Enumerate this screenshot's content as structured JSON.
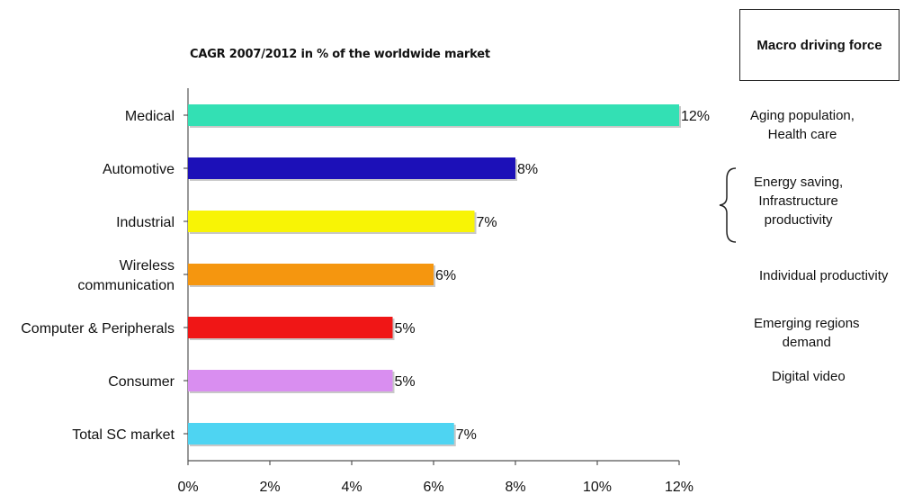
{
  "chart_data": {
    "type": "bar",
    "orientation": "horizontal",
    "title": "CAGR 2007/2012 in % of the worldwide market",
    "categories": [
      "Medical",
      "Automotive",
      "Industrial",
      "Wireless communication",
      "Computer & Peripherals",
      "Consumer",
      "Total SC market"
    ],
    "category_lines": [
      [
        "Medical"
      ],
      [
        "Automotive"
      ],
      [
        "Industrial"
      ],
      [
        "Wireless",
        "communication"
      ],
      [
        "Computer & Peripherals"
      ],
      [
        "Consumer"
      ],
      [
        "Total SC market"
      ]
    ],
    "values": [
      12,
      8,
      7,
      6,
      5,
      5,
      6.5
    ],
    "value_labels": [
      "12%",
      "8%",
      "7%",
      "6%",
      "5%",
      "5%",
      "7%"
    ],
    "colors": [
      "#33e0b4",
      "#1c10b8",
      "#f8f405",
      "#f5960f",
      "#f01616",
      "#d98ef0",
      "#4ed4f2"
    ],
    "xlim": [
      0,
      12
    ],
    "xticks": [
      "0%",
      "2%",
      "4%",
      "6%",
      "8%",
      "10%",
      "12%"
    ],
    "xlabel": "",
    "ylabel": "",
    "grid": false
  },
  "side_panel": {
    "header": "Macro driving force",
    "forces": [
      {
        "lines": [
          "Aging population,",
          "Health care"
        ]
      },
      {
        "lines": [
          "Energy saving,",
          "Infrastructure",
          "productivity"
        ]
      },
      {
        "lines": [
          "Individual productivity"
        ]
      },
      {
        "lines": [
          "Emerging regions",
          "demand"
        ]
      },
      {
        "lines": [
          "Digital video"
        ]
      }
    ]
  }
}
